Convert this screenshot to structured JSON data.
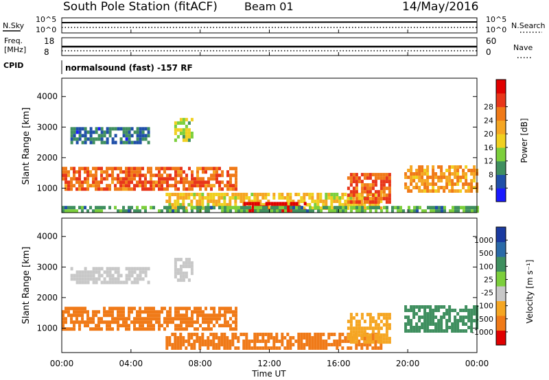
{
  "header": {
    "station": "South Pole Station (fitACF)",
    "beam": "Beam 01",
    "date": "14/May/2016"
  },
  "noise_panel": {
    "left_label": "N.Sky",
    "right_label": "N.Search",
    "left_ticks": [
      "10^5",
      "10^0"
    ],
    "right_ticks": [
      "10^5",
      "10^0"
    ]
  },
  "freq_panel": {
    "left_label_line1": "Freq.",
    "left_label_line2": "[MHz]",
    "right_label": "Nave",
    "left_ticks": [
      "18",
      "8"
    ],
    "right_ticks": [
      "60",
      "0"
    ]
  },
  "cpid": {
    "label": "CPID",
    "text": "normalsound (fast) -157 RF"
  },
  "time_axis": {
    "label": "Time UT",
    "ticks": [
      "00:00",
      "04:00",
      "08:00",
      "12:00",
      "16:00",
      "20:00",
      "00:00"
    ]
  },
  "colors": {
    "power": [
      "#1a1aff",
      "#1f4fa8",
      "#3f8f5f",
      "#7ccf3c",
      "#f0d020",
      "#f5a623",
      "#f07a18",
      "#e8361a",
      "#e00000"
    ],
    "velocity": [
      "#e00000",
      "#f07a18",
      "#f5a623",
      "#c8c8c8",
      "#7ccf3c",
      "#3f8f5f",
      "#2a6aa8",
      "#1a3aa0"
    ]
  },
  "chart_data": [
    {
      "type": "heatmap",
      "title": "Power",
      "ylabel": "Slant Range [km]",
      "xlabel": "",
      "ylim": [
        200,
        4600
      ],
      "yticks": [
        "1000",
        "2000",
        "3000",
        "4000"
      ],
      "colorbar": {
        "label": "Power [dB]",
        "ticks": [
          "4",
          "8",
          "12",
          "16",
          "20",
          "24",
          "28"
        ]
      },
      "regions": [
        {
          "t0": 0.0,
          "t1": 10.0,
          "r0": 950,
          "r1": 1700,
          "level": 20
        },
        {
          "t0": 0.5,
          "t1": 5.0,
          "r0": 2500,
          "r1": 3000,
          "level": 6
        },
        {
          "t0": 6.5,
          "t1": 7.5,
          "r0": 2600,
          "r1": 3300,
          "level": 10
        },
        {
          "t0": 6.0,
          "t1": 18.5,
          "r0": 350,
          "r1": 850,
          "level": 14
        },
        {
          "t0": 10.5,
          "t1": 14.0,
          "r0": 300,
          "r1": 550,
          "level": 26
        },
        {
          "t0": 16.5,
          "t1": 19.0,
          "r0": 500,
          "r1": 1500,
          "level": 22
        },
        {
          "t0": 19.8,
          "t1": 24.0,
          "r0": 900,
          "r1": 1750,
          "level": 18
        },
        {
          "t0": 0.0,
          "t1": 24.0,
          "r0": 220,
          "r1": 420,
          "level": 8
        }
      ]
    },
    {
      "type": "heatmap",
      "title": "Velocity",
      "ylabel": "Slant Range [km]",
      "xlabel": "Time UT",
      "ylim": [
        200,
        4600
      ],
      "yticks": [
        "1000",
        "2000",
        "3000",
        "4000"
      ],
      "colorbar": {
        "label": "Velocity [m s⁻¹]",
        "ticks": [
          "1000",
          "500",
          "100",
          "25",
          "-25",
          "-100",
          "-500",
          "-1000"
        ]
      },
      "regions": [
        {
          "t0": 0.0,
          "t1": 10.0,
          "r0": 950,
          "r1": 1700,
          "level": -200
        },
        {
          "t0": 0.5,
          "t1": 5.0,
          "r0": 2500,
          "r1": 3000,
          "level": 0
        },
        {
          "t0": 6.5,
          "t1": 7.5,
          "r0": 2600,
          "r1": 3300,
          "level": 0
        },
        {
          "t0": 6.0,
          "t1": 18.5,
          "r0": 350,
          "r1": 850,
          "level": -150
        },
        {
          "t0": 16.5,
          "t1": 19.0,
          "r0": 500,
          "r1": 1500,
          "level": -80
        },
        {
          "t0": 19.8,
          "t1": 24.0,
          "r0": 900,
          "r1": 1750,
          "level": 150
        }
      ]
    }
  ]
}
